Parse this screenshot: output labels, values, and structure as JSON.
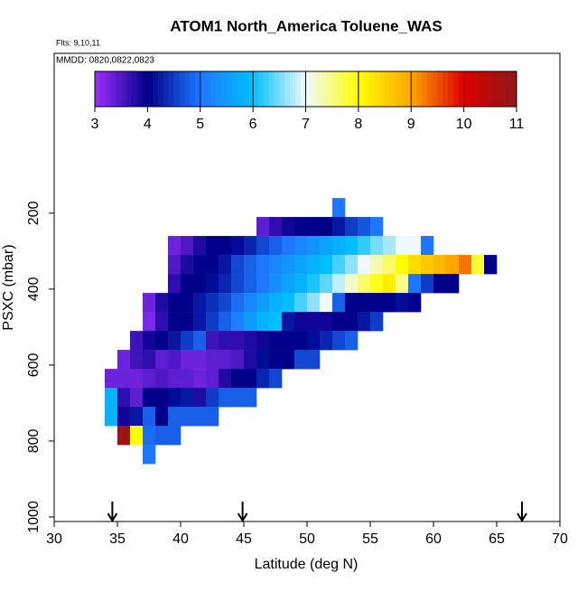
{
  "chart_data": {
    "type": "heatmap",
    "title": "ATOM1 North_America Toluene_WAS",
    "subtitle": "Flts: 9,10,11",
    "annotation": "MMDD: 0820,0822,0823",
    "xlabel": "Latitude (deg N)",
    "ylabel": "PSXC (mbar)",
    "xlim": [
      30,
      70
    ],
    "xticks": [
      30,
      35,
      40,
      45,
      50,
      55,
      60,
      65,
      70
    ],
    "ylim": [
      1012,
      -221
    ],
    "yticks": [
      200,
      400,
      600,
      800,
      1000
    ],
    "clim": [
      3,
      11
    ],
    "cticks": [
      3,
      4,
      5,
      6,
      7,
      8,
      9,
      10,
      11
    ],
    "colors": [
      "#9b30ff",
      "#00008b",
      "#1e78ff",
      "#00bfff",
      "#f0f8ff",
      "#ffff00",
      "#ffa500",
      "#dd0000",
      "#8b1a1a"
    ],
    "dx": 1,
    "dy": 50,
    "rows": [
      {
        "pressure": 185,
        "lat": 52,
        "values": [
          5.0
        ]
      },
      {
        "pressure": 235,
        "lat": 46,
        "values": [
          3.4,
          3.7,
          3.9,
          4.0,
          4.0,
          4.0,
          4.2,
          4.5,
          4.7,
          5.0
        ]
      },
      {
        "pressure": 285,
        "lat": 39,
        "values": [
          3.3,
          3.5,
          3.8,
          4.0,
          4.0,
          4.1,
          4.3,
          4.6,
          4.8,
          5.0,
          5.2,
          5.4,
          5.6,
          5.8,
          6.0,
          6.2,
          6.5,
          6.7,
          7.0,
          7.0,
          5.0
        ]
      },
      {
        "pressure": 335,
        "lat": 39,
        "values": [
          3.5,
          3.8,
          4.0,
          4.0,
          4.2,
          4.6,
          4.8,
          5.0,
          5.2,
          5.4,
          5.6,
          5.8,
          6.0,
          6.3,
          6.6,
          7.0,
          7.3,
          7.6,
          8.0,
          8.4,
          8.6,
          8.8,
          9.0,
          9.3,
          7.8,
          4.0
        ]
      },
      {
        "pressure": 385,
        "lat": 39,
        "values": [
          3.7,
          4.0,
          4.0,
          4.1,
          4.3,
          4.6,
          4.8,
          5.0,
          5.3,
          5.6,
          5.8,
          6.1,
          6.4,
          6.8,
          7.2,
          7.6,
          7.9,
          8.2,
          7.5,
          5.0,
          4.5,
          4.0,
          4.0
        ]
      },
      {
        "pressure": 435,
        "lat": 37,
        "values": [
          3.3,
          3.8,
          4.0,
          4.0,
          4.2,
          4.4,
          4.6,
          4.9,
          5.2,
          5.5,
          5.8,
          6.0,
          6.3,
          6.6,
          7.0,
          4.8,
          4.0,
          4.0,
          4.0,
          4.0,
          4.1,
          4.0
        ]
      },
      {
        "pressure": 485,
        "lat": 37,
        "values": [
          3.2,
          3.7,
          4.0,
          4.0,
          4.2,
          4.5,
          4.8,
          5.1,
          5.5,
          5.8,
          6.0,
          4.2,
          3.9,
          3.9,
          3.9,
          4.0,
          4.0,
          4.2,
          4.5
        ]
      },
      {
        "pressure": 535,
        "lat": 36,
        "values": [
          3.6,
          3.9,
          4.0,
          4.2,
          4.5,
          4.8,
          3.6,
          3.7,
          3.7,
          3.8,
          3.9,
          4.0,
          4.0,
          4.0,
          4.1,
          4.3,
          4.6,
          4.8
        ]
      },
      {
        "pressure": 585,
        "lat": 35,
        "values": [
          3.3,
          3.6,
          3.7,
          3.4,
          3.5,
          3.3,
          3.3,
          3.4,
          3.4,
          3.5,
          3.8,
          4.1,
          4.0,
          4.0,
          4.6,
          4.6
        ]
      },
      {
        "pressure": 635,
        "lat": 34,
        "values": [
          3.3,
          3.3,
          3.3,
          3.4,
          3.5,
          3.4,
          3.4,
          3.3,
          3.4,
          3.8,
          4.0,
          4.0,
          4.3,
          4.6
        ]
      },
      {
        "pressure": 685,
        "lat": 34,
        "values": [
          5.8,
          3.7,
          3.4,
          4.0,
          4.0,
          4.1,
          4.2,
          3.8,
          4.5,
          4.8,
          4.8,
          4.8
        ]
      },
      {
        "pressure": 735,
        "lat": 34,
        "values": [
          5.8,
          3.9,
          4.2,
          4.8,
          4.0,
          4.8,
          4.8,
          4.8,
          4.8
        ]
      },
      {
        "pressure": 785,
        "lat": 35,
        "values": [
          10.8,
          8.0,
          4.9,
          4.8,
          4.8
        ]
      },
      {
        "pressure": 835,
        "lat": 37,
        "values": [
          5.0
        ]
      }
    ],
    "arrows": [
      34.6,
      44.9,
      67.0
    ]
  }
}
